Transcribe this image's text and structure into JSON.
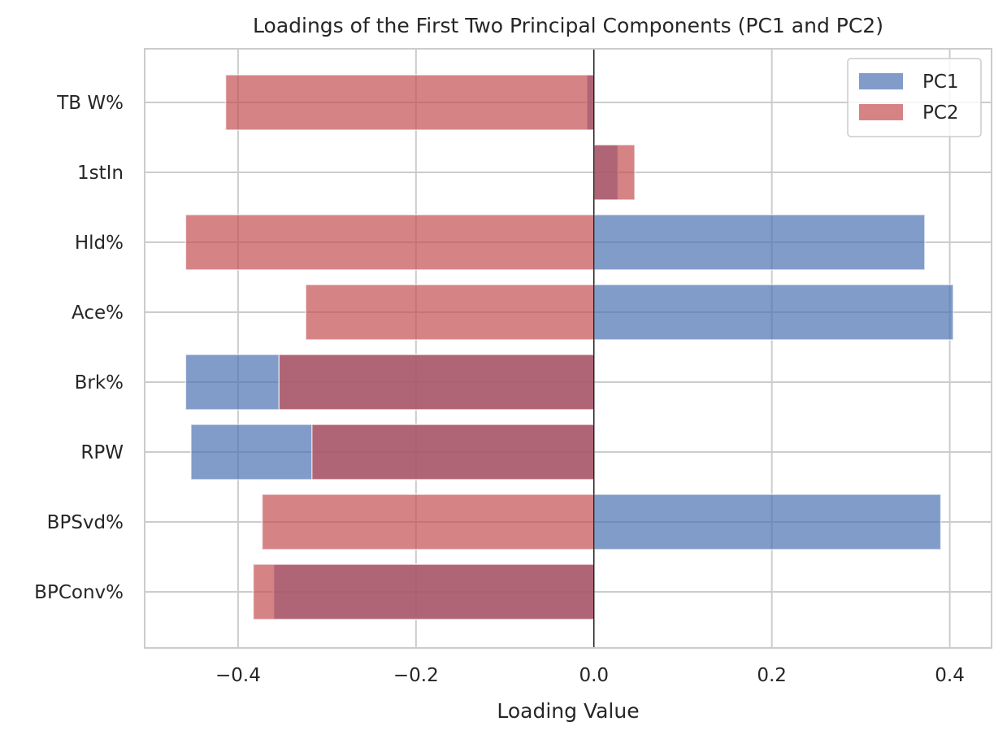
{
  "chart_data": {
    "type": "bar",
    "orientation": "horizontal",
    "title": "Loadings of the First Two Principal Components (PC1 and PC2)",
    "xlabel": "Loading Value",
    "ylabel": "",
    "categories": [
      "TB W%",
      "1stIn",
      "Hld%",
      "Ace%",
      "Brk%",
      "RPW",
      "BPSvd%",
      "BPConv%"
    ],
    "series": [
      {
        "name": "PC1",
        "color": "#4c72b0",
        "values": [
          -0.008,
          0.027,
          0.372,
          0.404,
          -0.459,
          -0.453,
          0.39,
          -0.36
        ]
      },
      {
        "name": "PC2",
        "color": "#c44e52",
        "values": [
          -0.414,
          0.046,
          -0.459,
          -0.324,
          -0.354,
          -0.317,
          -0.373,
          -0.383
        ]
      }
    ],
    "xlim": [
      -0.505,
      0.447
    ],
    "xticks": [
      -0.4,
      -0.2,
      0.0,
      0.2,
      0.4
    ],
    "xtick_labels": [
      "−0.4",
      "−0.2",
      "0.0",
      "0.2",
      "0.4"
    ],
    "grid": true,
    "legend_position": "top-right",
    "zero_line": true
  }
}
